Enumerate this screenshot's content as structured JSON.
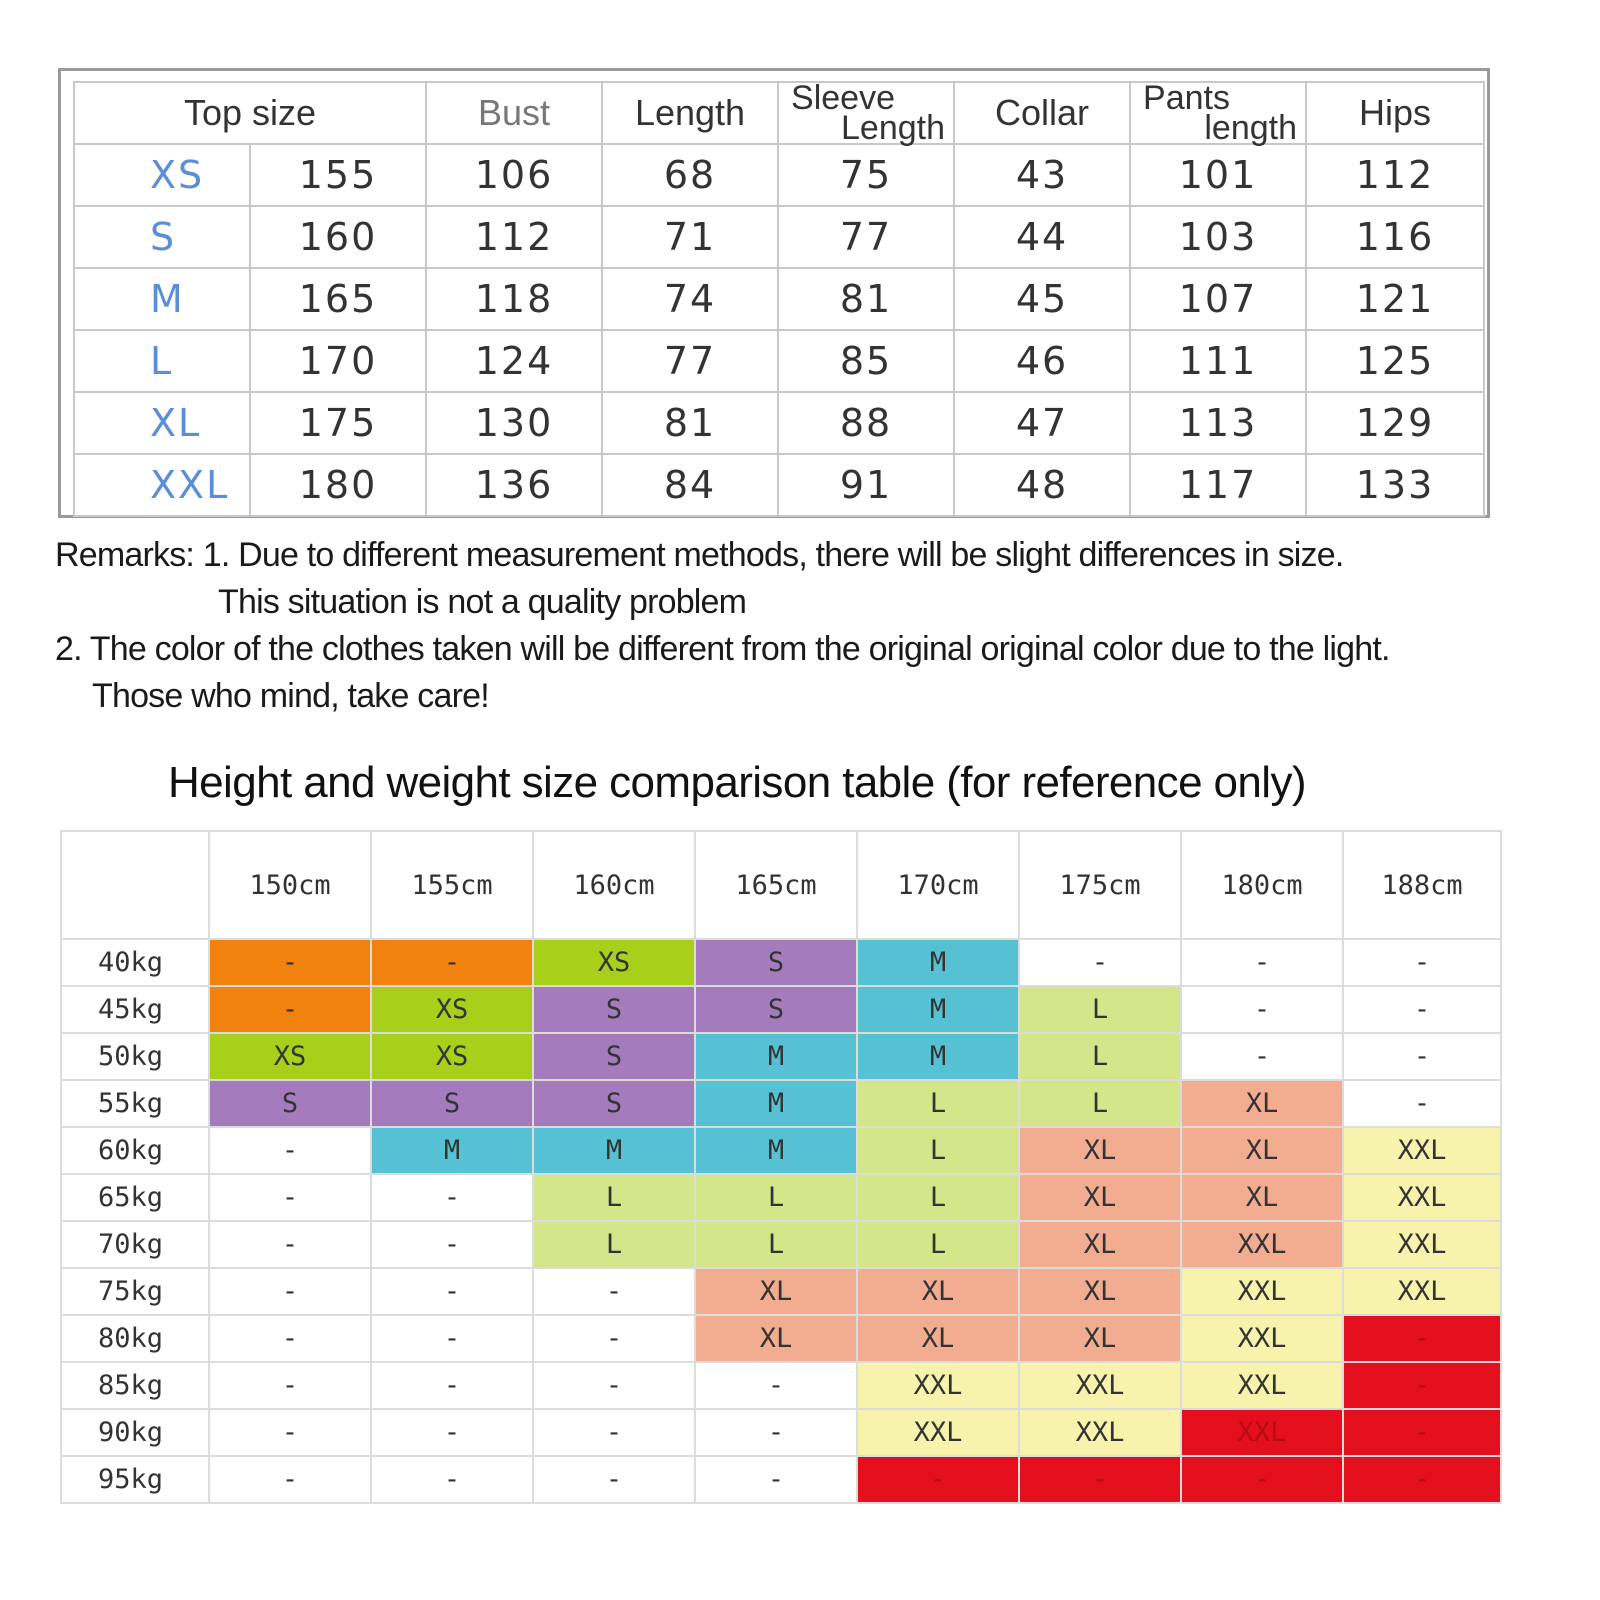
{
  "top_table": {
    "headers": {
      "top_size": "Top size",
      "bust": "Bust",
      "length": "Length",
      "sleeve_line1": "Sleeve",
      "sleeve_line2": "Length",
      "collar": "Collar",
      "pants_line1": "Pants",
      "pants_line2": "length",
      "hips": "Hips"
    },
    "rows": [
      {
        "size": "XS",
        "height": "155",
        "bust": "106",
        "length": "68",
        "sleeve": "75",
        "collar": "43",
        "pants": "101",
        "hips": "112"
      },
      {
        "size": "S",
        "height": "160",
        "bust": "112",
        "length": "71",
        "sleeve": "77",
        "collar": "44",
        "pants": "103",
        "hips": "116"
      },
      {
        "size": "M",
        "height": "165",
        "bust": "118",
        "length": "74",
        "sleeve": "81",
        "collar": "45",
        "pants": "107",
        "hips": "121"
      },
      {
        "size": "L",
        "height": "170",
        "bust": "124",
        "length": "77",
        "sleeve": "85",
        "collar": "46",
        "pants": "111",
        "hips": "125"
      },
      {
        "size": "XL",
        "height": "175",
        "bust": "130",
        "length": "81",
        "sleeve": "88",
        "collar": "47",
        "pants": "113",
        "hips": "129"
      },
      {
        "size": "XXL",
        "height": "180",
        "bust": "136",
        "length": "84",
        "sleeve": "91",
        "collar": "48",
        "pants": "117",
        "hips": "133"
      }
    ]
  },
  "remarks": {
    "line1": "Remarks: 1. Due to different measurement methods, there will be slight differences in size.",
    "line2": "This situation is not a quality problem",
    "line3": "2. The color of the clothes taken will be different from the original original color due to the light.",
    "line4": "Those who mind, take care!"
  },
  "heading": "Height and weight size comparison table (for reference only)",
  "hw_table": {
    "heights": [
      "150cm",
      "155cm",
      "160cm",
      "165cm",
      "170cm",
      "175cm",
      "180cm",
      "188cm"
    ],
    "rows": [
      {
        "weight": "40kg",
        "cells": [
          {
            "v": "-",
            "c": "c-o"
          },
          {
            "v": "-",
            "c": "c-o"
          },
          {
            "v": "XS",
            "c": "c-g"
          },
          {
            "v": "S",
            "c": "c-p"
          },
          {
            "v": "M",
            "c": "c-b"
          },
          {
            "v": "-",
            "c": ""
          },
          {
            "v": "-",
            "c": ""
          },
          {
            "v": "-",
            "c": ""
          }
        ]
      },
      {
        "weight": "45kg",
        "cells": [
          {
            "v": "-",
            "c": "c-o"
          },
          {
            "v": "XS",
            "c": "c-g"
          },
          {
            "v": "S",
            "c": "c-p"
          },
          {
            "v": "S",
            "c": "c-p"
          },
          {
            "v": "M",
            "c": "c-b"
          },
          {
            "v": "L",
            "c": "c-lg"
          },
          {
            "v": "-",
            "c": ""
          },
          {
            "v": "-",
            "c": ""
          }
        ]
      },
      {
        "weight": "50kg",
        "cells": [
          {
            "v": "XS",
            "c": "c-g"
          },
          {
            "v": "XS",
            "c": "c-g"
          },
          {
            "v": "S",
            "c": "c-p"
          },
          {
            "v": "M",
            "c": "c-b"
          },
          {
            "v": "M",
            "c": "c-b"
          },
          {
            "v": "L",
            "c": "c-lg"
          },
          {
            "v": "-",
            "c": ""
          },
          {
            "v": "-",
            "c": ""
          }
        ]
      },
      {
        "weight": "55kg",
        "cells": [
          {
            "v": "S",
            "c": "c-p"
          },
          {
            "v": "S",
            "c": "c-p"
          },
          {
            "v": "S",
            "c": "c-p"
          },
          {
            "v": "M",
            "c": "c-b"
          },
          {
            "v": "L",
            "c": "c-lg"
          },
          {
            "v": "L",
            "c": "c-lg"
          },
          {
            "v": "XL",
            "c": "c-s"
          },
          {
            "v": "-",
            "c": ""
          }
        ]
      },
      {
        "weight": "60kg",
        "cells": [
          {
            "v": "-",
            "c": ""
          },
          {
            "v": "M",
            "c": "c-b"
          },
          {
            "v": "M",
            "c": "c-b"
          },
          {
            "v": "M",
            "c": "c-b"
          },
          {
            "v": "L",
            "c": "c-lg"
          },
          {
            "v": "XL",
            "c": "c-s"
          },
          {
            "v": "XL",
            "c": "c-s"
          },
          {
            "v": "XXL",
            "c": "c-y"
          }
        ]
      },
      {
        "weight": "65kg",
        "cells": [
          {
            "v": "-",
            "c": ""
          },
          {
            "v": "-",
            "c": ""
          },
          {
            "v": "L",
            "c": "c-lg"
          },
          {
            "v": "L",
            "c": "c-lg"
          },
          {
            "v": "L",
            "c": "c-lg"
          },
          {
            "v": "XL",
            "c": "c-s"
          },
          {
            "v": "XL",
            "c": "c-s"
          },
          {
            "v": "XXL",
            "c": "c-y"
          }
        ]
      },
      {
        "weight": "70kg",
        "cells": [
          {
            "v": "-",
            "c": ""
          },
          {
            "v": "-",
            "c": ""
          },
          {
            "v": "L",
            "c": "c-lg"
          },
          {
            "v": "L",
            "c": "c-lg"
          },
          {
            "v": "L",
            "c": "c-lg"
          },
          {
            "v": "XL",
            "c": "c-s"
          },
          {
            "v": "XXL",
            "c": "c-s"
          },
          {
            "v": "XXL",
            "c": "c-y"
          }
        ]
      },
      {
        "weight": "75kg",
        "cells": [
          {
            "v": "-",
            "c": ""
          },
          {
            "v": "-",
            "c": ""
          },
          {
            "v": "-",
            "c": ""
          },
          {
            "v": "XL",
            "c": "c-s"
          },
          {
            "v": "XL",
            "c": "c-s"
          },
          {
            "v": "XL",
            "c": "c-s"
          },
          {
            "v": "XXL",
            "c": "c-y"
          },
          {
            "v": "XXL",
            "c": "c-y"
          }
        ]
      },
      {
        "weight": "80kg",
        "cells": [
          {
            "v": "-",
            "c": ""
          },
          {
            "v": "-",
            "c": ""
          },
          {
            "v": "-",
            "c": ""
          },
          {
            "v": "XL",
            "c": "c-s"
          },
          {
            "v": "XL",
            "c": "c-s"
          },
          {
            "v": "XL",
            "c": "c-s"
          },
          {
            "v": "XXL",
            "c": "c-y"
          },
          {
            "v": "-",
            "c": "c-r"
          }
        ]
      },
      {
        "weight": "85kg",
        "cells": [
          {
            "v": "-",
            "c": ""
          },
          {
            "v": "-",
            "c": ""
          },
          {
            "v": "-",
            "c": ""
          },
          {
            "v": "-",
            "c": ""
          },
          {
            "v": "XXL",
            "c": "c-y"
          },
          {
            "v": "XXL",
            "c": "c-y"
          },
          {
            "v": "XXL",
            "c": "c-y"
          },
          {
            "v": "-",
            "c": "c-r"
          }
        ]
      },
      {
        "weight": "90kg",
        "cells": [
          {
            "v": "-",
            "c": ""
          },
          {
            "v": "-",
            "c": ""
          },
          {
            "v": "-",
            "c": ""
          },
          {
            "v": "-",
            "c": ""
          },
          {
            "v": "XXL",
            "c": "c-y"
          },
          {
            "v": "XXL",
            "c": "c-y"
          },
          {
            "v": "XXL",
            "c": "c-r"
          },
          {
            "v": "-",
            "c": "c-r"
          }
        ]
      },
      {
        "weight": "95kg",
        "cells": [
          {
            "v": "-",
            "c": ""
          },
          {
            "v": "-",
            "c": ""
          },
          {
            "v": "-",
            "c": ""
          },
          {
            "v": "-",
            "c": ""
          },
          {
            "v": "-",
            "c": "c-r"
          },
          {
            "v": "-",
            "c": "c-r"
          },
          {
            "v": "-",
            "c": "c-r"
          },
          {
            "v": "-",
            "c": "c-r"
          }
        ]
      }
    ]
  },
  "colors": {
    "orange": "#f2820e",
    "green": "#a8cf1a",
    "purple": "#a47bbd",
    "blue": "#55c1d2",
    "light_green": "#d5e68a",
    "salmon": "#f2ac90",
    "yellow": "#f7f3ad",
    "red": "#e40f1c",
    "size_label": "#5b8ed6"
  }
}
